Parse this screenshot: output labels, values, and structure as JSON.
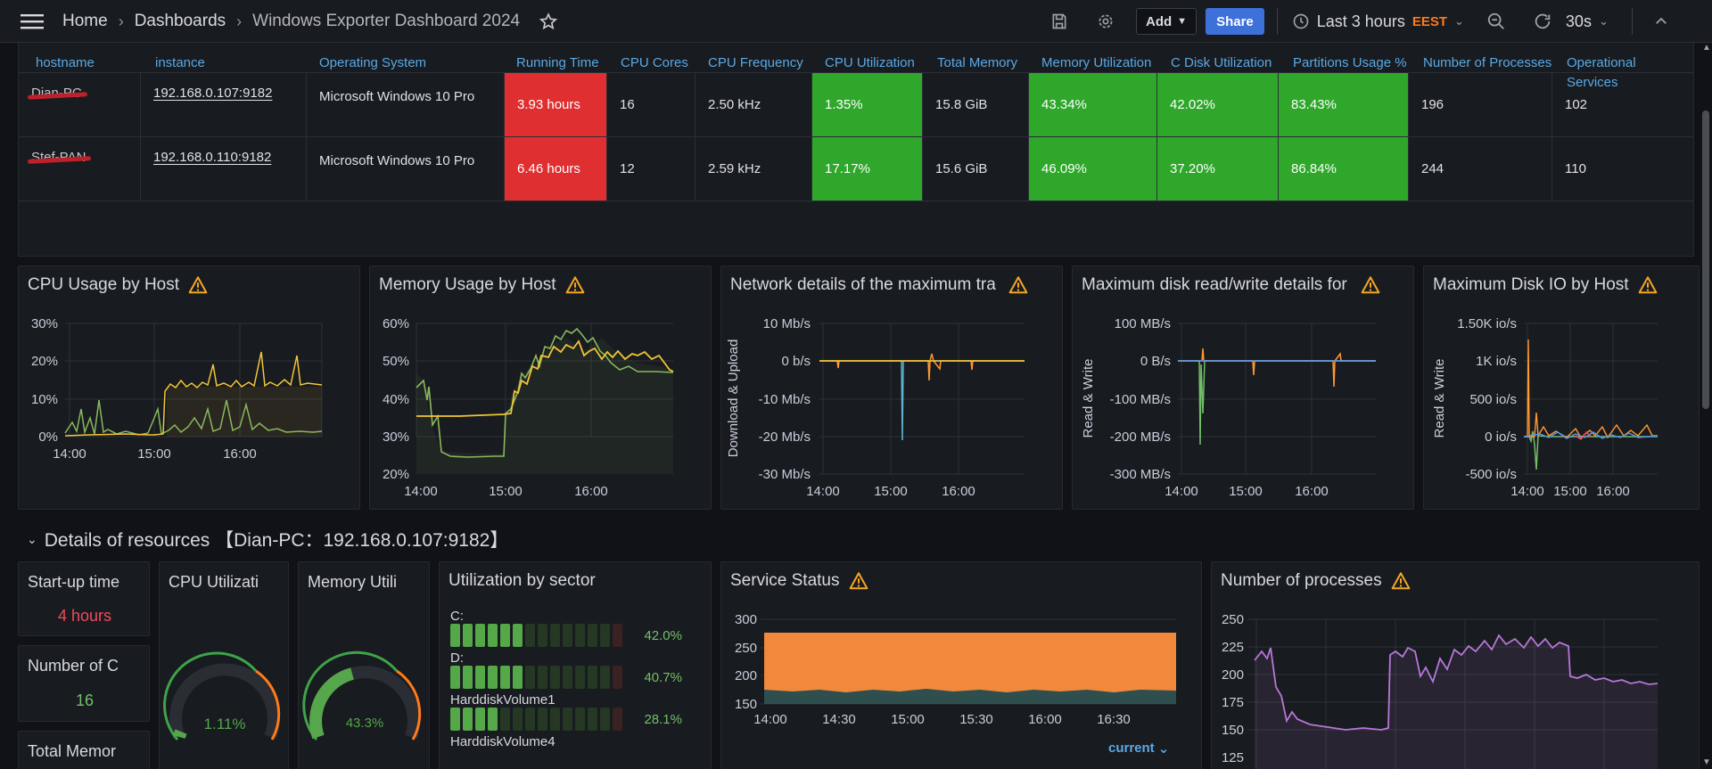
{
  "topbar": {
    "breadcrumb": [
      "Home",
      "Dashboards",
      "Windows Exporter Dashboard 2024"
    ],
    "add_label": "Add",
    "share_label": "Share",
    "time_range": "Last 3 hours",
    "timezone": "EEST",
    "refresh": "30s"
  },
  "table": {
    "headers": [
      "hostname",
      "instance",
      "Operating System",
      "Running Time",
      "CPU Cores",
      "CPU Frequency",
      "CPU Utilization",
      "Total Memory",
      "Memory Utilization",
      "C Disk Utilization",
      "Partitions Usage %",
      "Number of Processes",
      "Operational Services"
    ],
    "rows": [
      {
        "hostname": "Dian-PC",
        "instance": "192.168.0.107:9182",
        "os": "Microsoft Windows 10 Pro",
        "running": "3.93 hours",
        "cores": "16",
        "freq": "2.50 kHz",
        "cpu": "1.35%",
        "mem_total": "15.8 GiB",
        "mem_util": "43.34%",
        "cdisk": "42.02%",
        "partitions": "83.43%",
        "processes": "196",
        "services": "102"
      },
      {
        "hostname": "Stef-PAN",
        "instance": "192.168.0.110:9182",
        "os": "Microsoft Windows 10 Pro",
        "running": "6.46 hours",
        "cores": "12",
        "freq": "2.59 kHz",
        "cpu": "17.17%",
        "mem_total": "15.6 GiB",
        "mem_util": "46.09%",
        "cdisk": "37.20%",
        "partitions": "86.84%",
        "processes": "244",
        "services": "110"
      }
    ]
  },
  "panels": {
    "cpu": {
      "title": "CPU Usage by Host",
      "yticks": [
        "30%",
        "20%",
        "10%",
        "0%"
      ],
      "xticks": [
        "14:00",
        "15:00",
        "16:00"
      ]
    },
    "mem": {
      "title": "Memory Usage by Host",
      "yticks": [
        "60%",
        "50%",
        "40%",
        "30%",
        "20%"
      ],
      "xticks": [
        "14:00",
        "15:00",
        "16:00"
      ]
    },
    "net": {
      "title": "Network details of the maximum tra",
      "ylabel": "Download & Upload",
      "yticks": [
        "10 Mb/s",
        "0 b/s",
        "-10 Mb/s",
        "-20 Mb/s",
        "-30 Mb/s"
      ],
      "xticks": [
        "14:00",
        "15:00",
        "16:00"
      ]
    },
    "disk": {
      "title": "Maximum disk read/write details for",
      "ylabel": "Read & Write",
      "yticks": [
        "100 MB/s",
        "0 B/s",
        "-100 MB/s",
        "-200 MB/s",
        "-300 MB/s"
      ],
      "xticks": [
        "14:00",
        "15:00",
        "16:00"
      ]
    },
    "diskio": {
      "title": "Maximum Disk IO by Host",
      "ylabel": "Read & Write",
      "yticks": [
        "1.50K io/s",
        "1K io/s",
        "500 io/s",
        "0 io/s",
        "-500 io/s"
      ],
      "xticks": [
        "14:00",
        "15:00",
        "16:00"
      ]
    }
  },
  "section": {
    "title": "Details of resources 【Dian-PC：192.168.0.107:9182】"
  },
  "details": {
    "startup": {
      "title": "Start-up time",
      "value": "4 hours"
    },
    "cores": {
      "title": "Number of C",
      "value": "16"
    },
    "totalmem": {
      "title": "Total Memor"
    },
    "cpu_gauge": {
      "title": "CPU Utilizati",
      "value": "1.11%",
      "fraction": 0.0111
    },
    "mem_gauge": {
      "title": "Memory Utili",
      "value": "43.3%",
      "fraction": 0.433
    },
    "sectors": {
      "title": "Utilization by sector",
      "items": [
        {
          "name": "C:",
          "value": "42.0%",
          "fraction": 0.42
        },
        {
          "name": "D:",
          "value": "40.7%",
          "fraction": 0.407
        },
        {
          "name": "HarddiskVolume1",
          "value": "28.1%",
          "fraction": 0.281
        },
        {
          "name": "HarddiskVolume4",
          "value": "",
          "fraction": 0
        }
      ]
    },
    "service": {
      "title": "Service Status",
      "yticks": [
        "300",
        "250",
        "200",
        "150"
      ],
      "xticks": [
        "14:00",
        "14:30",
        "15:00",
        "15:30",
        "16:00",
        "16:30"
      ],
      "legend": "current"
    },
    "processes": {
      "title": "Number of processes",
      "yticks": [
        "250",
        "225",
        "200",
        "175",
        "150",
        "125"
      ]
    }
  },
  "colors": {
    "yellow": "#f2c537",
    "green": "#8ab85d",
    "orange": "#ff9830",
    "blue": "#5794f2",
    "purple": "#b877d9",
    "red_cell": "#e02f31",
    "green_cell": "#2ea72a"
  }
}
